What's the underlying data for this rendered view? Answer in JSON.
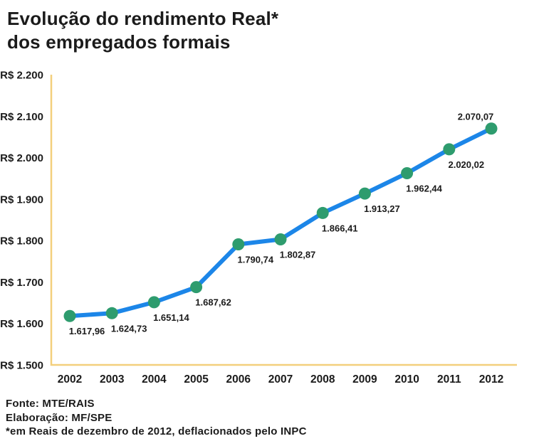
{
  "title": {
    "line1": "Evolução do rendimento Real*",
    "line2": "dos empregados formais"
  },
  "chart_data": {
    "type": "line",
    "title": "Evolução do rendimento Real* dos empregados formais",
    "categories": [
      "2002",
      "2003",
      "2004",
      "2005",
      "2006",
      "2007",
      "2008",
      "2009",
      "2010",
      "2011",
      "2012"
    ],
    "values": [
      1617.96,
      1624.73,
      1651.14,
      1687.62,
      1790.74,
      1802.87,
      1866.41,
      1913.27,
      1962.44,
      2020.02,
      2070.07
    ],
    "point_labels": [
      "1.617,96",
      "1.624,73",
      "1.651,14",
      "1.687,62",
      "1.790,74",
      "1.802,87",
      "1.866,41",
      "1.913,27",
      "1.962,44",
      "2.020,02",
      "2.070,07"
    ],
    "y_tick_values": [
      2200,
      2100,
      2000,
      1900,
      1800,
      1700,
      1600,
      1500
    ],
    "y_tick_labels": [
      "R$ 2.200",
      "R$ 2.100",
      "R$ 2.000",
      "R$ 1.900",
      "R$ 1.800",
      "R$ 1.700",
      "R$ 1.600",
      "R$ 1.500"
    ],
    "ylim": [
      1500,
      2200
    ],
    "xlabel": "",
    "ylabel": "",
    "grid": false,
    "legend_position": "none",
    "colors": {
      "line": "#1c86e8",
      "marker": "#2e9c6e",
      "axis": "#f3cf7c",
      "text": "#1b1b1b"
    }
  },
  "footer": {
    "line1": "Fonte: MTE/RAIS",
    "line2": "Elaboração: MF/SPE",
    "line3": "*em Reais de dezembro de 2012, deflacionados pelo INPC"
  }
}
